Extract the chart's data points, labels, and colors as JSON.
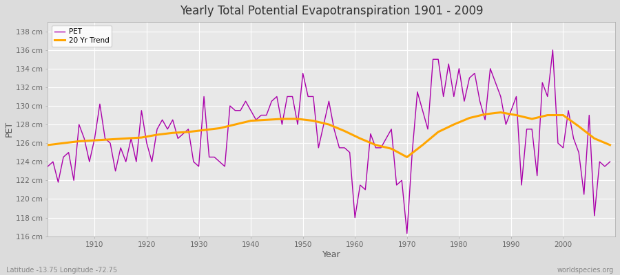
{
  "title": "Yearly Total Potential Evapotranspiration 1901 - 2009",
  "xlabel": "Year",
  "ylabel": "PET",
  "footer_left": "Latitude -13.75 Longitude -72.75",
  "footer_right": "worldspecies.org",
  "ylim": [
    116,
    139
  ],
  "yticks": [
    116,
    118,
    120,
    122,
    124,
    126,
    128,
    130,
    132,
    134,
    136,
    138
  ],
  "ytick_labels": [
    "116 cm",
    "118 cm",
    "120 cm",
    "122 cm",
    "124 cm",
    "126 cm",
    "128 cm",
    "130 cm",
    "132 cm",
    "134 cm",
    "136 cm",
    "138 cm"
  ],
  "xlim": [
    1901,
    2010
  ],
  "pet_color": "#AA00AA",
  "trend_color": "#FFA500",
  "background_color": "#DCDCDC",
  "plot_bg_color": "#E8E8E8",
  "legend_bg": "#FFFFFF",
  "years": [
    1901,
    1902,
    1903,
    1904,
    1905,
    1906,
    1907,
    1908,
    1909,
    1910,
    1911,
    1912,
    1913,
    1914,
    1915,
    1916,
    1917,
    1918,
    1919,
    1920,
    1921,
    1922,
    1923,
    1924,
    1925,
    1926,
    1927,
    1928,
    1929,
    1930,
    1931,
    1932,
    1933,
    1934,
    1935,
    1936,
    1937,
    1938,
    1939,
    1940,
    1941,
    1942,
    1943,
    1944,
    1945,
    1946,
    1947,
    1948,
    1949,
    1950,
    1951,
    1952,
    1953,
    1954,
    1955,
    1956,
    1957,
    1958,
    1959,
    1960,
    1961,
    1962,
    1963,
    1964,
    1965,
    1966,
    1967,
    1968,
    1969,
    1970,
    1971,
    1972,
    1973,
    1974,
    1975,
    1976,
    1977,
    1978,
    1979,
    1980,
    1981,
    1982,
    1983,
    1984,
    1985,
    1986,
    1987,
    1988,
    1989,
    1990,
    1991,
    1992,
    1993,
    1994,
    1995,
    1996,
    1997,
    1998,
    1999,
    2000,
    2001,
    2002,
    2003,
    2004,
    2005,
    2006,
    2007,
    2008,
    2009
  ],
  "pet_values": [
    123.5,
    124.0,
    121.8,
    124.5,
    125.0,
    122.0,
    128.0,
    126.5,
    124.0,
    126.5,
    130.2,
    126.5,
    126.0,
    123.0,
    125.5,
    124.0,
    126.5,
    124.0,
    129.5,
    126.0,
    124.0,
    127.5,
    128.5,
    127.5,
    128.5,
    126.5,
    127.0,
    127.5,
    124.0,
    123.5,
    131.0,
    124.5,
    124.5,
    124.0,
    123.5,
    130.0,
    129.5,
    129.5,
    130.5,
    129.5,
    128.5,
    129.0,
    129.0,
    130.5,
    131.0,
    128.0,
    131.0,
    131.0,
    128.0,
    133.5,
    131.0,
    131.0,
    125.5,
    128.0,
    130.5,
    127.5,
    125.5,
    125.5,
    125.0,
    118.0,
    121.5,
    121.0,
    127.0,
    125.5,
    125.5,
    126.5,
    127.5,
    121.5,
    122.0,
    116.3,
    125.0,
    131.5,
    129.5,
    127.5,
    135.0,
    135.0,
    131.0,
    134.5,
    131.0,
    134.0,
    130.5,
    133.0,
    133.5,
    130.5,
    128.5,
    134.0,
    132.5,
    131.0,
    128.0,
    129.5,
    131.0,
    121.5,
    127.5,
    127.5,
    122.5,
    132.5,
    131.0,
    136.0,
    126.0,
    125.5,
    129.5,
    126.5,
    125.0,
    120.5,
    129.0,
    118.2,
    124.0,
    123.5,
    124.0
  ],
  "trend_values_x": [
    1901,
    1904,
    1907,
    1910,
    1913,
    1916,
    1919,
    1922,
    1925,
    1928,
    1931,
    1934,
    1937,
    1940,
    1943,
    1946,
    1949,
    1952,
    1955,
    1958,
    1961,
    1964,
    1967,
    1970,
    1973,
    1976,
    1979,
    1982,
    1985,
    1988,
    1991,
    1994,
    1997,
    2000,
    2003,
    2006,
    2009
  ],
  "trend_values_y": [
    125.8,
    126.0,
    126.2,
    126.3,
    126.4,
    126.5,
    126.6,
    126.9,
    127.1,
    127.2,
    127.4,
    127.6,
    128.0,
    128.4,
    128.5,
    128.6,
    128.6,
    128.4,
    128.0,
    127.3,
    126.5,
    125.8,
    125.4,
    124.5,
    125.8,
    127.2,
    128.0,
    128.7,
    129.1,
    129.3,
    129.0,
    128.6,
    129.0,
    129.0,
    127.8,
    126.5,
    125.8
  ]
}
